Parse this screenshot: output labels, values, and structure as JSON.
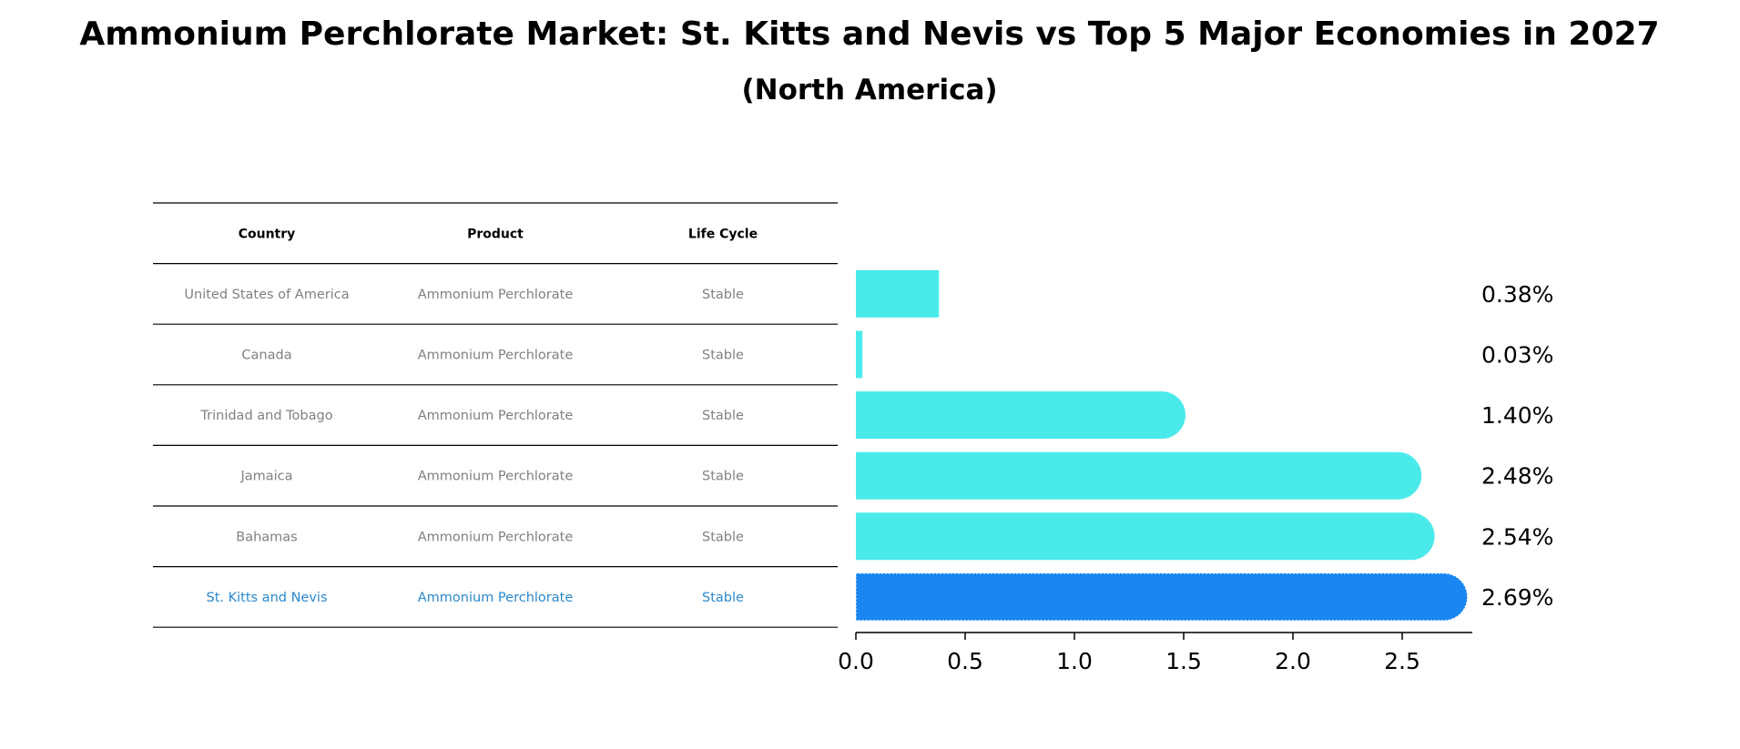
{
  "chart_data": {
    "type": "bar",
    "orientation": "horizontal",
    "title": "Ammonium Perchlorate Market: St. Kitts and Nevis vs Top 5 Major Economies in 2027",
    "subtitle": "(North America)",
    "table": {
      "headers": [
        "Country",
        "Product",
        "Life Cycle"
      ],
      "rows": [
        [
          "United States of America",
          "Ammonium Perchlorate",
          "Stable"
        ],
        [
          "Canada",
          "Ammonium Perchlorate",
          "Stable"
        ],
        [
          "Trinidad and Tobago",
          "Ammonium Perchlorate",
          "Stable"
        ],
        [
          "Jamaica",
          "Ammonium Perchlorate",
          "Stable"
        ],
        [
          "Bahamas",
          "Ammonium Perchlorate",
          "Stable"
        ],
        [
          "St. Kitts and Nevis",
          "Ammonium Perchlorate",
          "Stable"
        ]
      ],
      "highlight_row": 5
    },
    "categories": [
      "United States of America",
      "Canada",
      "Trinidad and Tobago",
      "Jamaica",
      "Bahamas",
      "St. Kitts and Nevis"
    ],
    "values": [
      0.38,
      0.03,
      1.4,
      2.48,
      2.54,
      2.69
    ],
    "value_labels": [
      "0.38%",
      "0.03%",
      "1.40%",
      "2.48%",
      "2.54%",
      "2.69%"
    ],
    "highlight_index": 5,
    "xlim": [
      0,
      2.83
    ],
    "xticks": [
      0.0,
      0.5,
      1.0,
      1.5,
      2.0,
      2.5
    ],
    "xtick_labels": [
      "0.0",
      "0.5",
      "1.0",
      "1.5",
      "2.0",
      "2.5"
    ],
    "xlabel": "",
    "ylabel": "",
    "grid": false,
    "colors": {
      "bar": "#4beaea",
      "highlight_bar": "#1a86f2",
      "highlight_text": "#2b88cc",
      "table_text": "#808080",
      "axis": "#000000"
    }
  }
}
